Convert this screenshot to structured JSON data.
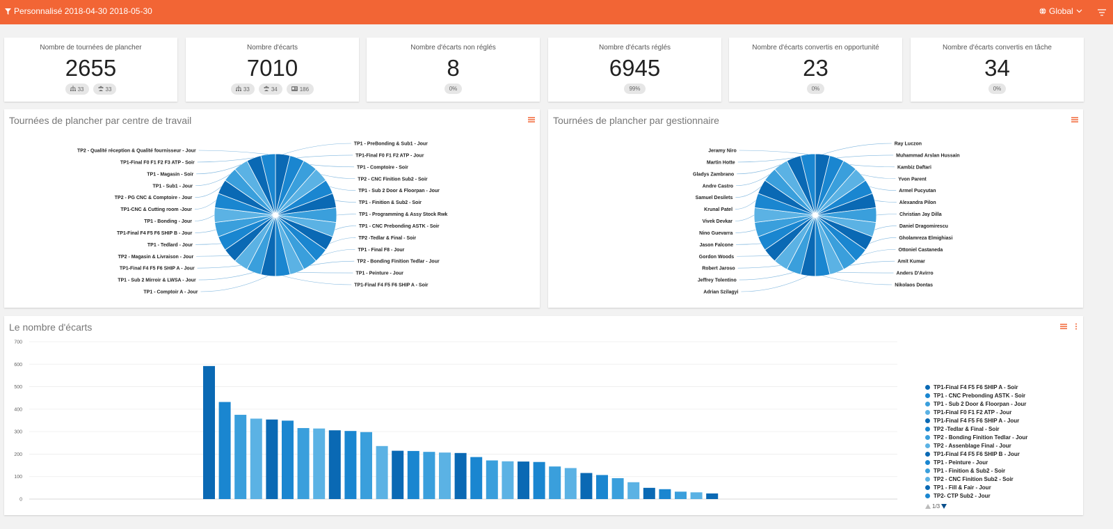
{
  "topbar": {
    "filter_text": "Personnalisé 2018-04-30 2018-05-30",
    "scope_label": "Global"
  },
  "stats": [
    {
      "title": "Nombre de tournées de plancher",
      "value": "2655",
      "chips": [
        {
          "icon": "org-icon",
          "text": "33"
        },
        {
          "icon": "group-icon",
          "text": "33"
        }
      ]
    },
    {
      "title": "Nombre d'écarts",
      "value": "7010",
      "chips": [
        {
          "icon": "org-icon",
          "text": "33"
        },
        {
          "icon": "group-icon",
          "text": "34"
        },
        {
          "icon": "id-card-icon",
          "text": "186"
        }
      ]
    },
    {
      "title": "Nombre d'écarts non réglés",
      "value": "8",
      "chips": [
        {
          "icon": "",
          "text": "0%"
        }
      ]
    },
    {
      "title": "Nombre d'écarts réglés",
      "value": "6945",
      "chips": [
        {
          "icon": "",
          "text": "99%"
        }
      ]
    },
    {
      "title": "Nombre d'écarts convertis en opportunité",
      "value": "23",
      "chips": [
        {
          "icon": "",
          "text": "0%"
        }
      ]
    },
    {
      "title": "Nombre d'écarts convertis en tâche",
      "value": "34",
      "chips": [
        {
          "icon": "",
          "text": "0%"
        }
      ]
    }
  ],
  "panels": {
    "pie1_title": "Tournées de plancher par centre de travail",
    "pie2_title": "Tournées de plancher par gestionnaire",
    "bar_title": "Le nombre d'écarts"
  },
  "colors": {
    "accent": "#f26535",
    "shades": [
      "#0a69b4",
      "#1a86d0",
      "#3a9fdc",
      "#5bb2e4"
    ]
  },
  "chart_data": [
    {
      "type": "pie",
      "title": "Tournées de plancher par centre de travail",
      "slices": [
        "TP1 - PreBonding & Sub1 - Jour",
        "TP1-Final F0 F1 F2 ATP - Jour",
        "TP1 - Comptoire - Soir",
        "TP2 - CNC Finition Sub2 - Soir",
        "TP1 - Sub 2 Door & Floorpan - Jour",
        "TP1 - Finition & Sub2 - Soir",
        "TP1 - Programming & Assy Stock Rwk",
        "TP1 - CNC Prebonding ASTK - Soir",
        "TP2 -Tedlar & Final - Soir",
        "TP1 - Final F8 - Jour",
        "TP2 - Bonding Finition Tedlar - Jour",
        "TP1 - Peinture - Jour",
        "TP1-Final F4 F5 F6 SHIP A - Soir",
        "TP1 - Comptoir A - Jour",
        "TP1 - Sub 2 Mirroir & LWSA - Jour",
        "TP1-Final F4 F5 F6 SHIP A - Jour",
        "TP2 - Magasin & Livraison - Jour",
        "TP1 - Tedlard - Jour",
        "TP1-Final F4 F5 F6 SHIP B - Jour",
        "TP1 - Bonding - Jour",
        "TP1-CNC & Cutting room -Jour",
        "TP2 - PG CNC & Comptoire - Jour",
        "TP1 - Sub1 - Jour",
        "TP1 - Magasin - Soir",
        "TP1-Final F0 F1 F2 F3 ATP - Soir",
        "TP2 - Qualité réception & Qualité fournisseur - Jour"
      ]
    },
    {
      "type": "pie",
      "title": "Tournées de plancher par gestionnaire",
      "slices": [
        "Ray Luczon",
        "Muhammad Arslan Hussain",
        "Kambiz Daftari",
        "Yvon Parent",
        "Armel Pucyutan",
        "Alexandra Pilon",
        "Christian Jay Dilla",
        "Daniel Dragomirescu",
        "Gholamreza Elmighiasi",
        "Ottoniel Castaneda",
        "Amit Kumar",
        "Anders D'Avirro",
        "Nikolaos Dontas",
        "Adrian Szilagyi",
        "Jeffrey Tolentino",
        "Robert Jaroso",
        "Gordon Woods",
        "Jason Falcone",
        "Nino Guevarra",
        "Vivek Devkar",
        "Krunal Patel",
        "Samuel Desilets",
        "Andre Castro",
        "Gladys Zambrano",
        "Martin Hotte",
        "Jeramy Niro"
      ]
    },
    {
      "type": "bar",
      "title": "Le nombre d'écarts",
      "ylim": [
        0,
        700
      ],
      "yticks": [
        0,
        100,
        200,
        300,
        400,
        500,
        600,
        700
      ],
      "grid": true,
      "legend_position": "right",
      "values": [
        592,
        432,
        375,
        358,
        354,
        349,
        316,
        314,
        306,
        303,
        298,
        236,
        215,
        214,
        210,
        207,
        205,
        187,
        172,
        168,
        167,
        165,
        145,
        138,
        116,
        107,
        93,
        75,
        50,
        44,
        33,
        30,
        25
      ],
      "legend": [
        "TP1-Final F4 F5 F6 SHIP A - Soir",
        "TP1 - CNC Prebonding ASTK - Soir",
        "TP1 - Sub 2 Door & Floorpan - Jour",
        "TP1-Final F0 F1 F2 ATP - Jour",
        "TP1-Final F4 F5 F6 SHIP A - Jour",
        "TP2 -Tedlar & Final - Soir",
        "TP2 - Bonding Finition Tedlar - Jour",
        "TP2 - Assenblage Final - Jour",
        "TP1-Final F4 F5 F6 SHIP B - Jour",
        "TP1 - Peinture - Jour",
        "TP1 - Finition & Sub2 - Soir",
        "TP2 - CNC Finition Sub2 - Soir",
        "TP1 - Fill & Fair - Jour",
        "TP2- CTP Sub2 - Jour"
      ],
      "page": "1/3"
    }
  ]
}
